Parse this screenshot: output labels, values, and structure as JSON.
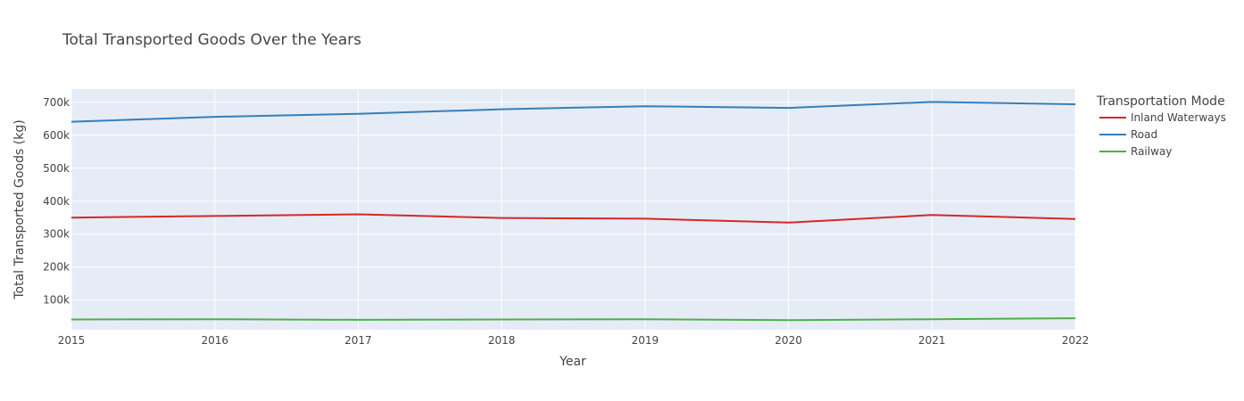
{
  "chart_data": {
    "type": "line",
    "title": "Total Transported Goods Over the Years",
    "xlabel": "Year",
    "ylabel": "Total Transported Goods (kg)",
    "x": [
      2015,
      2016,
      2017,
      2018,
      2019,
      2020,
      2021,
      2022
    ],
    "x_ticks": [
      "2015",
      "2016",
      "2017",
      "2018",
      "2019",
      "2020",
      "2021",
      "2022"
    ],
    "xlim": [
      2015,
      2022
    ],
    "ylim": [
      10000,
      740000
    ],
    "y_ticks": [
      100000,
      200000,
      300000,
      400000,
      500000,
      600000,
      700000
    ],
    "y_tick_labels": [
      "100k",
      "200k",
      "300k",
      "400k",
      "500k",
      "600k",
      "700k"
    ],
    "grid": true,
    "plot_background": "#E5ECF6",
    "legend": {
      "title": "Transportation Mode",
      "placement": "top-right-outside"
    },
    "series": [
      {
        "name": "Inland Waterways",
        "color": "#D62728",
        "values": [
          350000,
          355000,
          360000,
          349000,
          347000,
          335000,
          358000,
          346000
        ]
      },
      {
        "name": "Road",
        "color": "#377EB8",
        "values": [
          641000,
          656000,
          665000,
          679000,
          688000,
          683000,
          701000,
          694000
        ]
      },
      {
        "name": "Railway",
        "color": "#4DAF4A",
        "values": [
          41000,
          42000,
          40000,
          41000,
          42000,
          39000,
          42000,
          45000
        ]
      }
    ]
  }
}
